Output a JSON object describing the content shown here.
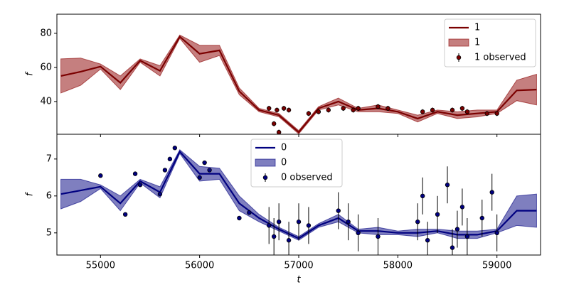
{
  "chart_data": [
    {
      "type": "line",
      "ylabel": "f",
      "legend": "upper right",
      "xlim": [
        54560,
        59440
      ],
      "xticks": [
        55000,
        56000,
        57000,
        58000,
        59000
      ],
      "ylim": [
        20.8,
        91.2
      ],
      "yticks": [
        40,
        60,
        80
      ],
      "x": [
        54600,
        54800,
        55000,
        55200,
        55400,
        55600,
        55800,
        56000,
        56200,
        56400,
        56600,
        56800,
        57000,
        57200,
        57400,
        57600,
        57800,
        58000,
        58200,
        58400,
        58600,
        58800,
        59000,
        59200,
        59400
      ],
      "series": [
        {
          "name": "1",
          "type": "line",
          "color": "#7b0000",
          "values": [
            55,
            57.5,
            60.5,
            51,
            64,
            58,
            78,
            68,
            70,
            46,
            35,
            32,
            22,
            36,
            40,
            35,
            36,
            34,
            30,
            34,
            32,
            33,
            34,
            46.5,
            47
          ]
        },
        {
          "name": "1",
          "type": "band",
          "color": "#8b0000",
          "lower": [
            45,
            49.5,
            59,
            47,
            63,
            55,
            77,
            63,
            67,
            44,
            34,
            31,
            21,
            35,
            38,
            34,
            34,
            33,
            28,
            33,
            30,
            31,
            33,
            40.5,
            38
          ],
          "upper": [
            65,
            65.5,
            62,
            55,
            65,
            61,
            79,
            73,
            73,
            48,
            36,
            33,
            23,
            37,
            42,
            36,
            38,
            35,
            32,
            35,
            34,
            35,
            35,
            52.5,
            56
          ]
        },
        {
          "name": "1 observed",
          "type": "errorbar",
          "color": "#7b0000",
          "x": [
            56700,
            56750,
            56780,
            56800,
            56850,
            56900,
            57100,
            57200,
            57300,
            57450,
            57550,
            57600,
            57800,
            57900,
            58250,
            58350,
            58550,
            58650,
            58700,
            58900,
            59000
          ],
          "values": [
            36,
            27,
            35,
            22,
            36,
            35,
            33,
            34,
            35,
            36,
            35,
            36,
            37,
            36,
            34,
            35,
            35,
            36,
            34,
            33,
            33
          ],
          "errors": [
            1.5,
            1.5,
            1.5,
            1.5,
            1.5,
            1.5,
            1.5,
            1.5,
            1.5,
            1.5,
            1.5,
            1.5,
            1.5,
            1.5,
            1.5,
            1.5,
            1.5,
            1.5,
            1.5,
            1.5,
            1.5
          ]
        }
      ]
    },
    {
      "type": "line",
      "ylabel": "f",
      "xlabel": "t",
      "legend": "upper center",
      "xlim": [
        54560,
        59440
      ],
      "xticks": [
        55000,
        56000,
        57000,
        58000,
        59000
      ],
      "ylim": [
        4.4,
        7.67
      ],
      "yticks": [
        5,
        6,
        7
      ],
      "x": [
        54600,
        54800,
        55000,
        55200,
        55400,
        55600,
        55800,
        56000,
        56200,
        56400,
        56600,
        56800,
        57000,
        57200,
        57400,
        57600,
        57800,
        58000,
        58200,
        58400,
        58600,
        58800,
        59000,
        59200,
        59400
      ],
      "series": [
        {
          "name": "0",
          "type": "line",
          "color": "#000080",
          "values": [
            6.05,
            6.15,
            6.25,
            5.8,
            6.4,
            6.1,
            7.2,
            6.6,
            6.6,
            5.8,
            5.4,
            5.1,
            4.85,
            5.2,
            5.4,
            5.05,
            5.05,
            5.0,
            5.0,
            5.05,
            4.95,
            4.95,
            5.05,
            5.6,
            5.6
          ]
        },
        {
          "name": "0",
          "type": "band",
          "color": "#000080",
          "lower": [
            5.65,
            5.85,
            6.2,
            5.6,
            6.35,
            5.95,
            7.15,
            6.4,
            6.45,
            5.6,
            5.3,
            5.05,
            4.8,
            5.15,
            5.3,
            5.0,
            4.95,
            4.95,
            4.9,
            5.0,
            4.85,
            4.85,
            5.0,
            5.2,
            5.15
          ],
          "upper": [
            6.45,
            6.45,
            6.3,
            6.0,
            6.45,
            6.25,
            7.25,
            6.8,
            6.75,
            6.0,
            5.5,
            5.15,
            4.9,
            5.25,
            5.5,
            5.1,
            5.15,
            5.05,
            5.1,
            5.1,
            5.05,
            5.05,
            5.1,
            6.0,
            6.05
          ]
        },
        {
          "name": "0 observed",
          "type": "errorbar",
          "color": "#000080",
          "x": [
            55000,
            55250,
            55350,
            55400,
            55600,
            55650,
            55700,
            55750,
            56000,
            56050,
            56100,
            56400,
            56500,
            56700,
            56750,
            56800,
            56900,
            57000,
            57100,
            57400,
            57500,
            57600,
            57800,
            58200,
            58250,
            58300,
            58400,
            58500,
            58550,
            58600,
            58650,
            58700,
            58850,
            58950,
            59000
          ],
          "values": [
            6.55,
            5.5,
            6.6,
            6.3,
            6.05,
            6.7,
            7.0,
            7.3,
            6.5,
            6.9,
            6.7,
            5.4,
            5.55,
            5.2,
            4.9,
            5.3,
            4.8,
            5.3,
            5.2,
            5.6,
            5.3,
            5.0,
            4.9,
            5.3,
            6.0,
            4.8,
            5.5,
            6.3,
            4.6,
            5.1,
            5.7,
            4.9,
            5.4,
            6.1,
            5.0
          ],
          "errors": [
            0.05,
            0.05,
            0.05,
            0.05,
            0.05,
            0.05,
            0.05,
            0.05,
            0.05,
            0.05,
            0.05,
            0.05,
            0.05,
            0.5,
            0.5,
            0.5,
            0.5,
            0.5,
            0.5,
            0.5,
            0.5,
            0.5,
            0.5,
            0.5,
            0.5,
            0.5,
            0.5,
            0.5,
            0.5,
            0.5,
            0.5,
            0.5,
            0.5,
            0.5,
            0.5
          ]
        }
      ]
    }
  ]
}
